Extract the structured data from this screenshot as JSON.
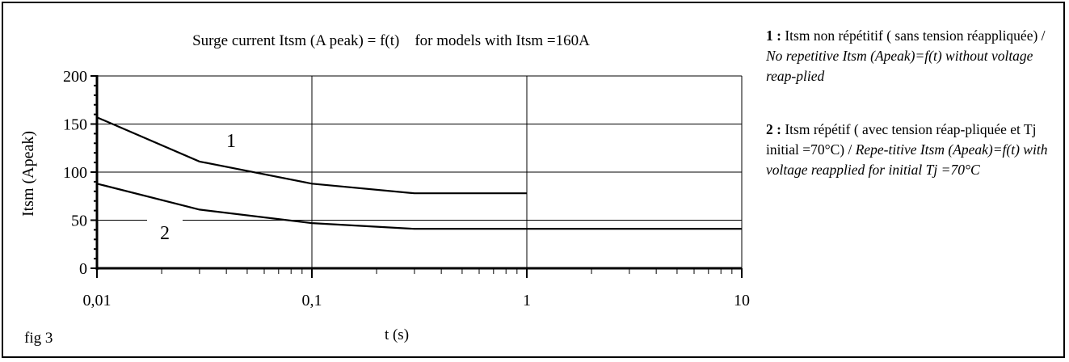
{
  "chart_data": {
    "type": "line",
    "title": "Surge current Itsm (A peak) = f(t)    for models with Itsm =160A",
    "xlabel": "t (s)",
    "ylabel": "Itsm (Apeak)",
    "x_scale": "log",
    "xlim": [
      0.01,
      10
    ],
    "ylim": [
      0,
      200
    ],
    "x_tick_labels": [
      "0,01",
      "0,1",
      "1",
      "10"
    ],
    "x_tick_values": [
      0.01,
      0.1,
      1,
      10
    ],
    "y_tick_values": [
      0,
      50,
      100,
      150,
      200
    ],
    "grid": true,
    "series": [
      {
        "name": "1",
        "x": [
          0.01,
          0.03,
          0.1,
          0.3,
          1
        ],
        "y": [
          157,
          111,
          88,
          78,
          78
        ]
      },
      {
        "name": "2",
        "x": [
          0.01,
          0.03,
          0.1,
          0.3,
          1,
          10
        ],
        "y": [
          88,
          61,
          47,
          41,
          41,
          41
        ]
      }
    ],
    "figure_label": "fig 3"
  },
  "notes": [
    {
      "id": "1 :",
      "text": " Itsm non répétitif ( sans tension réappliquée) / ",
      "italic": "No repetitive Itsm (Apeak)=f(t) without voltage reap-plied"
    },
    {
      "id": "2 :",
      "text": " Itsm répétif ( avec tension réap-pliquée et Tj initial =70°C) / ",
      "italic": "Repe-titive Itsm (Apeak)=f(t) with voltage reapplied for initial Tj =70°C"
    }
  ]
}
